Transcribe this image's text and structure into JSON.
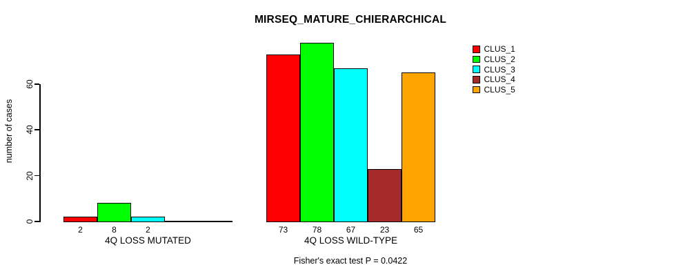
{
  "chart_data": {
    "type": "bar",
    "title": "MIRSEQ_MATURE_CHIERARCHICAL",
    "ylabel": "number of cases",
    "xlabel": "",
    "ylim": [
      0,
      80
    ],
    "yticks": [
      0,
      20,
      40,
      60
    ],
    "grid": false,
    "legend_position": "top-right",
    "annotation": "Fisher's exact test P = 0.0422",
    "series": [
      {
        "name": "CLUS_1",
        "color": "#FF0000"
      },
      {
        "name": "CLUS_2",
        "color": "#00FF00"
      },
      {
        "name": "CLUS_3",
        "color": "#00FFFF"
      },
      {
        "name": "CLUS_4",
        "color": "#A52A2A"
      },
      {
        "name": "CLUS_5",
        "color": "#FFA500"
      }
    ],
    "groups": [
      {
        "label": "4Q LOSS MUTATED",
        "values": [
          2,
          8,
          2,
          0,
          0
        ],
        "bar_labels": [
          "2",
          "8",
          "2",
          "",
          ""
        ]
      },
      {
        "label": "4Q LOSS WILD-TYPE",
        "values": [
          73,
          78,
          67,
          23,
          65
        ],
        "bar_labels": [
          "73",
          "78",
          "67",
          "23",
          "65"
        ]
      }
    ],
    "colors": {
      "axis": "#000000",
      "text": "#000000",
      "background": "#FFFFFF"
    }
  }
}
